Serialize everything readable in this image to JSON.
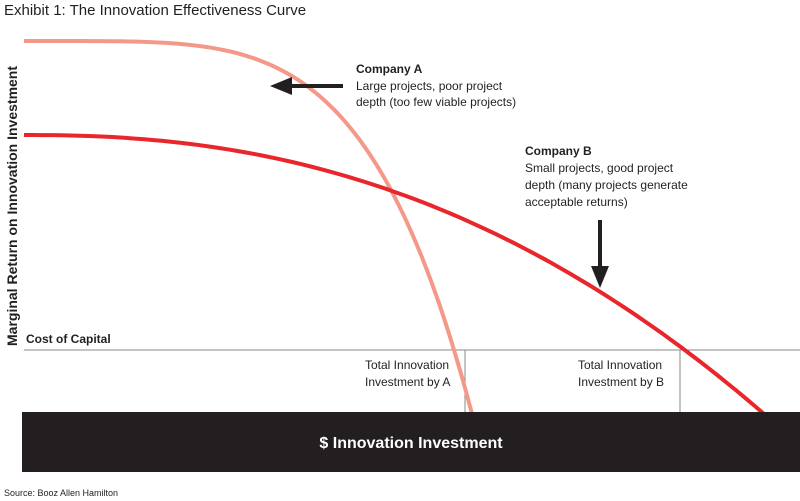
{
  "chart_data": {
    "type": "line",
    "title": "Exhibit 1: The Innovation Effectiveness Curve",
    "xlabel": "$ Innovation Investment",
    "ylabel": "Marginal Return on Innovation Investment",
    "source": "Source: Booz Allen Hamilton",
    "reference_line": {
      "label": "Cost of Capital"
    },
    "series": [
      {
        "name": "Company A",
        "color": "#f4998a",
        "description": [
          "Large projects, poor project",
          "depth (too few viable projects)"
        ],
        "marker_label": [
          "Total Innovation",
          "Investment by A"
        ]
      },
      {
        "name": "Company B",
        "color": "#e8262b",
        "description": [
          "Small projects, good project",
          "depth (many projects generate",
          "acceptable returns)"
        ],
        "marker_label": [
          "Total Innovation",
          "Investment by B"
        ]
      }
    ],
    "grid": false,
    "legend": "none"
  }
}
